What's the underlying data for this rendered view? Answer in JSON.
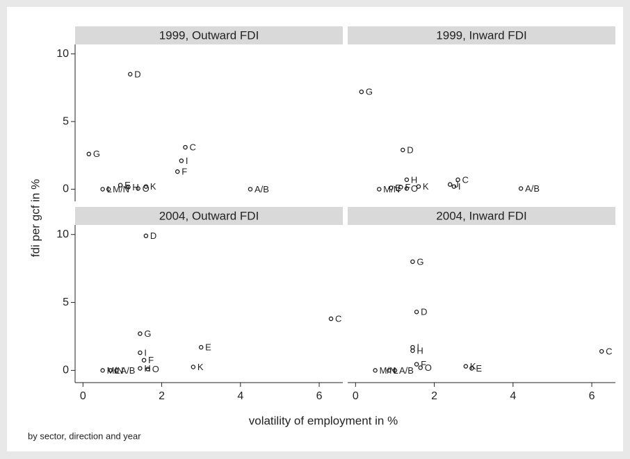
{
  "chart_data": [
    {
      "type": "scatter",
      "title": "1999, Outward FDI",
      "x": [
        1.2,
        0.15,
        2.6,
        2.5,
        2.4,
        0.95,
        0.5,
        0.65,
        1.15,
        1.4,
        1.6,
        4.25
      ],
      "values": [
        8.5,
        2.6,
        3.1,
        2.1,
        1.3,
        0.3,
        0,
        0,
        0.15,
        0.05,
        0.2,
        0
      ],
      "point_labels": [
        "D",
        "G",
        "C",
        "I",
        "F",
        "E",
        "L",
        "M/N",
        "H",
        "O",
        "K",
        "A/B"
      ],
      "xlim": [
        -0.2,
        6.6
      ],
      "ylim": [
        -0.9,
        10.7
      ],
      "yticks": [
        0,
        5,
        10
      ]
    },
    {
      "type": "scatter",
      "title": "1999, Inward  FDI",
      "x": [
        0.15,
        1.2,
        1.3,
        2.6,
        2.4,
        2.5,
        1.6,
        0.6,
        0.9,
        1.15,
        1.3,
        4.2
      ],
      "values": [
        7.2,
        2.9,
        0.7,
        0.7,
        0.35,
        0.2,
        0.2,
        0,
        0.1,
        0.15,
        0.05,
        0.05
      ],
      "point_labels": [
        "G",
        "D",
        "H",
        "C",
        "J",
        "I",
        "K",
        "M/N",
        "E",
        "F",
        "O",
        "A/B"
      ],
      "xlim": [
        -0.2,
        6.6
      ],
      "ylim": [
        -0.9,
        10.7
      ]
    },
    {
      "type": "scatter",
      "title": "2004, Outward FDI",
      "x": [
        1.6,
        6.3,
        1.45,
        3.0,
        1.45,
        1.55,
        1.45,
        1.65,
        2.8,
        0.5,
        0.7,
        0.85
      ],
      "values": [
        9.9,
        3.8,
        2.7,
        1.7,
        1.3,
        0.75,
        0.15,
        0.1,
        0.25,
        0,
        0,
        0
      ],
      "point_labels": [
        "D",
        "C",
        "G",
        "E",
        "I",
        "F",
        "H",
        "O",
        "K",
        "M/N",
        "L",
        "A/B"
      ],
      "xlim": [
        -0.2,
        6.6
      ],
      "ylim": [
        -0.9,
        10.7
      ],
      "xticks": [
        0,
        2,
        4,
        6
      ],
      "yticks": [
        0,
        5,
        10
      ]
    },
    {
      "type": "scatter",
      "title": "2004, Inward  FDI",
      "x": [
        1.45,
        1.55,
        1.45,
        1.45,
        6.25,
        1.55,
        1.65,
        2.8,
        2.95,
        0.5,
        0.85,
        1.0
      ],
      "values": [
        8.0,
        4.3,
        1.7,
        1.45,
        1.4,
        0.45,
        0.2,
        0.3,
        0.15,
        0,
        0,
        0
      ],
      "point_labels": [
        "G",
        "D",
        "I",
        "H",
        "C",
        "F",
        "O",
        "K",
        "E",
        "M/N",
        "L",
        "A/B"
      ],
      "xlim": [
        -0.2,
        6.6
      ],
      "ylim": [
        -0.9,
        10.7
      ],
      "xticks": [
        0,
        2,
        4,
        6
      ]
    }
  ],
  "x_label": "volatility of employment in %",
  "y_label": "fdi per gcf in %",
  "note": "by sector, direction and year"
}
